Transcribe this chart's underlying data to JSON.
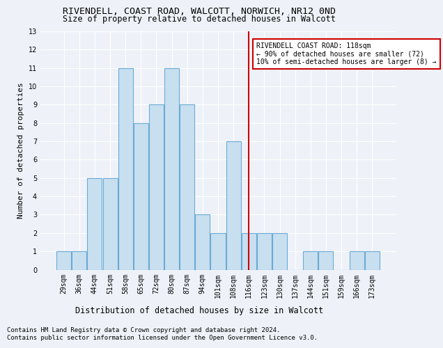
{
  "title": "RIVENDELL, COAST ROAD, WALCOTT, NORWICH, NR12 0ND",
  "subtitle": "Size of property relative to detached houses in Walcott",
  "xlabel": "Distribution of detached houses by size in Walcott",
  "ylabel": "Number of detached properties",
  "categories": [
    "29sqm",
    "36sqm",
    "44sqm",
    "51sqm",
    "58sqm",
    "65sqm",
    "72sqm",
    "80sqm",
    "87sqm",
    "94sqm",
    "101sqm",
    "108sqm",
    "116sqm",
    "123sqm",
    "130sqm",
    "137sqm",
    "144sqm",
    "151sqm",
    "159sqm",
    "166sqm",
    "173sqm"
  ],
  "values": [
    1,
    1,
    5,
    5,
    11,
    8,
    9,
    11,
    9,
    3,
    2,
    7,
    2,
    2,
    2,
    0,
    1,
    1,
    0,
    1,
    1
  ],
  "bar_color": "#c8dff0",
  "bar_edge_color": "#6aaad4",
  "vline_x": 12,
  "vline_color": "#cc0000",
  "annotation_text": "RIVENDELL COAST ROAD: 118sqm\n← 90% of detached houses are smaller (72)\n10% of semi-detached houses are larger (8) →",
  "annotation_box_color": "#cc0000",
  "ylim": [
    0,
    13
  ],
  "yticks": [
    0,
    1,
    2,
    3,
    4,
    5,
    6,
    7,
    8,
    9,
    10,
    11,
    12,
    13
  ],
  "footnote1": "Contains HM Land Registry data © Crown copyright and database right 2024.",
  "footnote2": "Contains public sector information licensed under the Open Government Licence v3.0.",
  "background_color": "#eef2f8",
  "grid_color": "#ffffff",
  "title_fontsize": 9.5,
  "subtitle_fontsize": 8.5,
  "ylabel_fontsize": 8,
  "xlabel_fontsize": 8.5,
  "tick_fontsize": 7,
  "annot_fontsize": 7,
  "footnote_fontsize": 6.5
}
